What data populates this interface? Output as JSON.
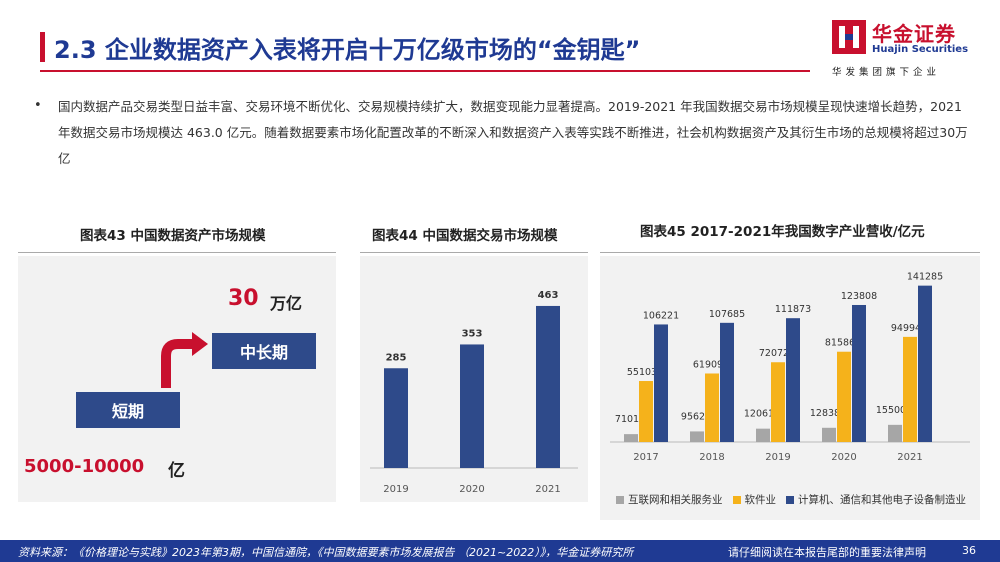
{
  "header": {
    "title": "2.3 企业数据资产入表将开启十万亿级市场的“金钥匙”",
    "logo_cn": "华金证券",
    "logo_en": "Huajin Securities",
    "logo_slogan": "华发集团旗下企业"
  },
  "bullet": {
    "text": "国内数据产品交易类型日益丰富、交易环境不断优化、交易规模持续扩大，数据变现能力显著提高。2019-2021 年我国数据交易市场规模呈现快速增长趋势，2021 年数据交易市场规模达 463.0 亿元。随着数据要素市场化配置改革的不断深入和数据资产入表等实践不断推进，社会机构数据资产及其衍生市场的总规模将超过30万亿"
  },
  "chart43": {
    "title": "图表43 中国数据资产市场规模",
    "long_value": "30",
    "long_unit": "万亿",
    "long_label": "中长期",
    "short_label": "短期",
    "short_value": "5000-10000",
    "short_unit": "亿"
  },
  "chart_data": [
    {
      "type": "bar",
      "title": "图表44 中国数据交易市场规模",
      "categories": [
        "2019",
        "2020",
        "2021"
      ],
      "values": [
        285,
        353,
        463
      ],
      "ylim": [
        0,
        520
      ],
      "color": "#2e4a8a",
      "grid": false
    },
    {
      "type": "bar",
      "title": "图表45 2017-2021年我国数字产业营收/亿元",
      "categories": [
        "2017",
        "2018",
        "2019",
        "2020",
        "2021"
      ],
      "series": [
        {
          "name": "互联网和相关服务业",
          "values": [
            7101,
            9562,
            12061,
            12838,
            15500
          ],
          "color": "#a6a6a6"
        },
        {
          "name": "软件业",
          "values": [
            55103,
            61909,
            72072,
            81586,
            94994
          ],
          "color": "#f5b21b"
        },
        {
          "name": "计算机、通信和其他电子设备制造业",
          "values": [
            106221,
            107685,
            111873,
            123808,
            141285
          ],
          "color": "#2e4a8a"
        }
      ],
      "ylim": [
        0,
        150000
      ],
      "legend": "bottom",
      "grid": false
    }
  ],
  "legend45": [
    {
      "label": "互联网和相关服务业",
      "color": "#a6a6a6"
    },
    {
      "label": "软件业",
      "color": "#f5b21b"
    },
    {
      "label": "计算机、通信和其他电子设备制造业",
      "color": "#2e4a8a"
    }
  ],
  "footer": {
    "source": "资料来源：《价格理论与实践》2023年第3期，中国信通院，《中国数据要素市场发展报告 （2021~2022）》，华金证券研究所",
    "disclaimer": "请仔细阅读在本报告尾部的重要法律声明",
    "page": "36"
  }
}
